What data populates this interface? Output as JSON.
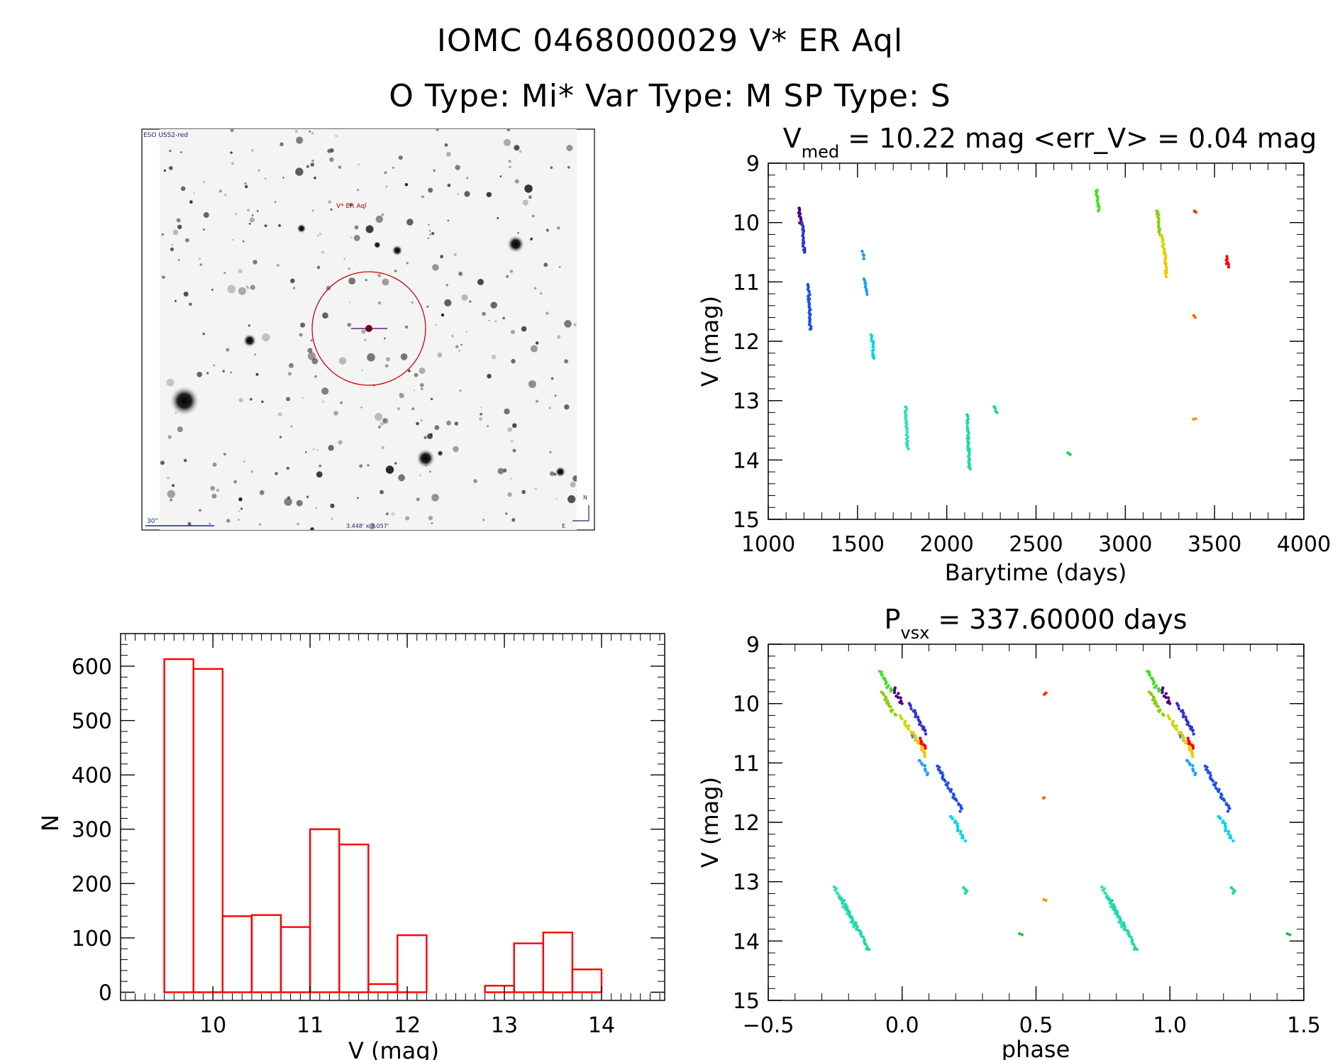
{
  "header": {
    "title_line1": "IOMC 0468000029    V* ER Aql",
    "title_line2": "O Type: Mi*  Var Type: M   SP Type: S"
  },
  "sky_image": {
    "survey_label": "ESO USS2-red",
    "target_label": "V* ER Aql",
    "scale_label": "30\"",
    "size_label": "3.448' x 3.057'",
    "north_label": "N",
    "east_label": "E"
  },
  "colors": {
    "histogram": "#ff0000",
    "axes": "#000000"
  },
  "chart_data": [
    {
      "type": "scatter",
      "name": "light-curve",
      "title": "V_med = 10.22 mag <err_V> = 0.04 mag",
      "title_parts": {
        "prefix": "V",
        "sub": "med",
        "suffix": " = 10.22 mag <err_V> = 0.04 mag"
      },
      "xlabel": "Barytime (days)",
      "ylabel": "V (mag)",
      "xlim": [
        1000,
        4000
      ],
      "ylim": [
        15,
        9
      ],
      "xticks": [
        "1000",
        "1500",
        "2000",
        "2500",
        "3000",
        "3500",
        "4000"
      ],
      "yticks": [
        "9",
        "10",
        "11",
        "12",
        "13",
        "14",
        "15"
      ],
      "clusters": [
        {
          "x": 1170,
          "y1": 9.75,
          "y2": 10.0,
          "color": "#4b0082"
        },
        {
          "x": 1190,
          "y1": 10.0,
          "y2": 10.5,
          "color": "#3333cc"
        },
        {
          "x": 1225,
          "y1": 11.05,
          "y2": 11.8,
          "color": "#1e50e6"
        },
        {
          "x": 1530,
          "y1": 10.5,
          "y2": 10.6,
          "color": "#1e90ff"
        },
        {
          "x": 1540,
          "y1": 10.95,
          "y2": 11.2,
          "color": "#1ea0ff"
        },
        {
          "x": 1580,
          "y1": 11.9,
          "y2": 12.3,
          "color": "#00d6f0"
        },
        {
          "x": 1770,
          "y1": 13.1,
          "y2": 13.8,
          "color": "#30e0c0"
        },
        {
          "x": 2115,
          "y1": 13.25,
          "y2": 14.15,
          "color": "#20d8a8"
        },
        {
          "x": 2270,
          "y1": 13.1,
          "y2": 13.2,
          "color": "#20d890"
        },
        {
          "x": 2680,
          "y1": 13.87,
          "y2": 13.9,
          "color": "#20c840"
        },
        {
          "x": 2840,
          "y1": 9.45,
          "y2": 9.8,
          "color": "#40e020"
        },
        {
          "x": 3180,
          "y1": 9.8,
          "y2": 10.2,
          "color": "#88d000"
        },
        {
          "x": 3205,
          "y1": 10.2,
          "y2": 10.5,
          "color": "#d0d800"
        },
        {
          "x": 3220,
          "y1": 10.5,
          "y2": 10.9,
          "color": "#f0c800"
        },
        {
          "x": 3385,
          "y1": 9.82,
          "y2": 9.84,
          "color": "#ff3300"
        },
        {
          "x": 3385,
          "y1": 11.58,
          "y2": 11.6,
          "color": "#ff6600"
        },
        {
          "x": 3385,
          "y1": 13.3,
          "y2": 13.32,
          "color": "#ff9900"
        },
        {
          "x": 3565,
          "y1": 10.58,
          "y2": 10.75,
          "color": "#ff0000"
        }
      ]
    },
    {
      "type": "bar",
      "name": "histogram",
      "xlabel": "V (mag)",
      "ylabel": "N",
      "xlim": [
        9.05,
        14.65
      ],
      "ylim": [
        -15,
        660
      ],
      "xticks": [
        "10",
        "11",
        "12",
        "13",
        "14"
      ],
      "yticks": [
        "0",
        "100",
        "200",
        "300",
        "400",
        "500",
        "600"
      ],
      "bin_edges": [
        9.5,
        9.8,
        10.1,
        10.4,
        10.7,
        11.0,
        11.3,
        11.6,
        11.9,
        12.2,
        12.5,
        12.8,
        13.1,
        13.4,
        13.7,
        14.0,
        14.3
      ],
      "values": [
        613,
        595,
        140,
        142,
        120,
        300,
        272,
        15,
        105,
        0,
        0,
        12,
        90,
        110,
        42,
        0
      ]
    },
    {
      "type": "scatter",
      "name": "phased-light-curve",
      "title": "P_vsx = 337.60000 days",
      "title_parts": {
        "prefix": "P",
        "sub": "vsx",
        "suffix": " = 337.60000 days"
      },
      "xlabel": "phase",
      "ylabel": "V (mag)",
      "xlim": [
        -0.5,
        1.5
      ],
      "ylim": [
        15,
        9
      ],
      "xticks": [
        "−0.5",
        "0.0",
        "0.5",
        "1.0",
        "1.5"
      ],
      "yticks": [
        "9",
        "10",
        "11",
        "12",
        "13",
        "14",
        "15"
      ],
      "period_days": 337.6,
      "epoch_days": 1180
    }
  ]
}
